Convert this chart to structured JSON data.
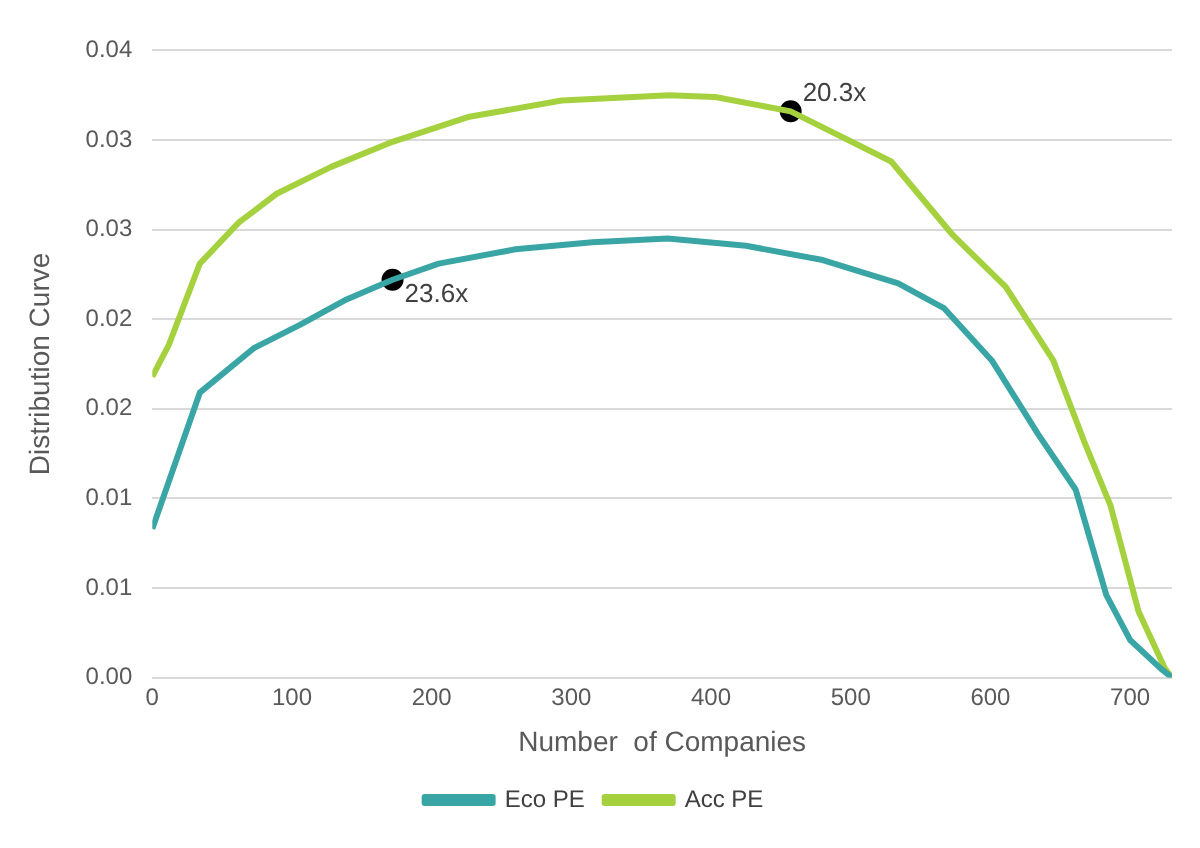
{
  "chart_data": {
    "type": "line",
    "xlabel": "Number  of Companies",
    "ylabel": "Distribution Curve",
    "xlim": [
      0,
      730
    ],
    "xticks": [
      0,
      100,
      200,
      300,
      400,
      500,
      600,
      700
    ],
    "ylim": [
      0,
      0.035
    ],
    "yticks": [
      {
        "value": 0,
        "label": "0.00"
      },
      {
        "value": 0.005,
        "label": "0.01"
      },
      {
        "value": 0.01,
        "label": "0.01"
      },
      {
        "value": 0.015,
        "label": "0.02"
      },
      {
        "value": 0.02,
        "label": "0.02"
      },
      {
        "value": 0.025,
        "label": "0.03"
      },
      {
        "value": 0.03,
        "label": "0.03"
      },
      {
        "value": 0.035,
        "label": "0.04"
      }
    ],
    "grid": "y",
    "legend": "bottom",
    "marker": "none",
    "line_style": "solid",
    "series": [
      {
        "name": "Eco PE",
        "color": "#3aa5a5",
        "x": [
          0,
          34,
          73,
          106,
          139,
          172,
          205,
          260,
          315,
          369,
          425,
          480,
          534,
          567,
          601,
          634,
          661,
          683,
          700,
          722,
          730
        ],
        "values": [
          0.0083,
          0.0159,
          0.0184,
          0.0197,
          0.0211,
          0.0222,
          0.0231,
          0.0239,
          0.0243,
          0.0245,
          0.0241,
          0.0233,
          0.022,
          0.0206,
          0.0177,
          0.0136,
          0.0105,
          0.0046,
          0.0021,
          0.0005,
          0
        ]
      },
      {
        "name": "Acc PE",
        "color": "#a5d13f",
        "x": [
          0,
          12,
          34,
          62,
          89,
          128,
          172,
          227,
          293,
          370,
          403,
          457,
          529,
          573,
          611,
          645,
          667,
          686,
          706,
          725,
          730
        ],
        "values": [
          0.0168,
          0.0186,
          0.0231,
          0.0254,
          0.027,
          0.0285,
          0.0299,
          0.0313,
          0.0322,
          0.0325,
          0.0324,
          0.0316,
          0.0288,
          0.0247,
          0.0218,
          0.0177,
          0.0132,
          0.0096,
          0.0037,
          0.0005,
          0
        ]
      },
      {
        "type": "scatter",
        "color": "#000000",
        "marker": "circle",
        "x": [
          172,
          457
        ],
        "values": [
          0.0222,
          0.0316
        ]
      }
    ],
    "annotations": [
      {
        "text": "23.6x",
        "x": 172,
        "y": 0.0222
      },
      {
        "text": "20.3x",
        "x": 457,
        "y": 0.0316
      }
    ]
  }
}
